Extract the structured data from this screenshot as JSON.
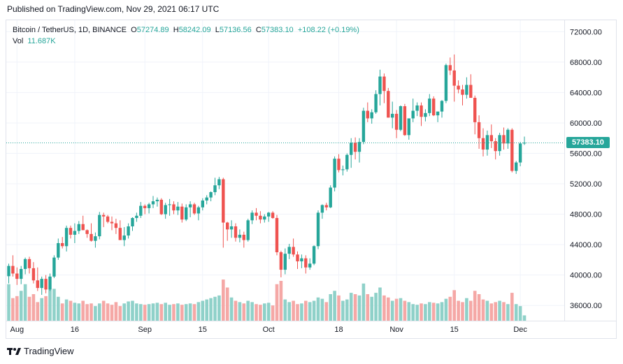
{
  "header": {
    "published": "Published on TradingView.com, Nov 29, 2021 06:17 UTC"
  },
  "legend": {
    "symbol": "Bitcoin / TetherUS, 1D, BINANCE",
    "o_label": "O",
    "o_value": "57274.89",
    "h_label": "H",
    "h_value": "58242.09",
    "l_label": "L",
    "l_value": "57136.56",
    "c_label": "C",
    "c_value": "57383.10",
    "change": "+108.22 (+0.19%)",
    "vol_label": "Vol",
    "vol_value": "11.687K"
  },
  "last_price_label": "57383.10",
  "footer": {
    "brand": "TradingView"
  },
  "colors": {
    "up": "#26a69a",
    "down": "#ef5350",
    "up_vol": "#8fd1c9",
    "down_vol": "#f5a8a6",
    "grid": "#f0f3fa",
    "last_line": "#26a69a"
  },
  "chart_data": {
    "type": "candlestick",
    "symbol": "BTCUSDT",
    "interval": "1D",
    "ylim": [
      34000,
      73500
    ],
    "y_ticks": [
      "72000.00",
      "68000.00",
      "64000.00",
      "60000.00",
      "56000.00",
      "52000.00",
      "48000.00",
      "44000.00",
      "40000.00",
      "36000.00"
    ],
    "y_tick_values": [
      72000,
      68000,
      64000,
      60000,
      56000,
      52000,
      48000,
      44000,
      40000,
      36000
    ],
    "x_ticks": [
      {
        "label": "Aug",
        "day": 2
      },
      {
        "label": "16",
        "day": 16
      },
      {
        "label": "Sep",
        "day": 33
      },
      {
        "label": "15",
        "day": 47
      },
      {
        "label": "Oct",
        "day": 63
      },
      {
        "label": "18",
        "day": 80
      },
      {
        "label": "Nov",
        "day": 94
      },
      {
        "label": "15",
        "day": 108
      },
      {
        "label": "Dec",
        "day": 124
      }
    ],
    "last_price": 57383.1,
    "candles": [
      [
        39850,
        41500,
        38900,
        41200,
        0.55
      ],
      [
        41200,
        42600,
        39800,
        40200,
        0.34
      ],
      [
        40200,
        41000,
        38700,
        39500,
        0.37
      ],
      [
        39500,
        41200,
        38800,
        40800,
        0.45
      ],
      [
        40800,
        42300,
        40100,
        42100,
        0.55
      ],
      [
        42100,
        42400,
        40200,
        40900,
        0.36
      ],
      [
        40900,
        41700,
        38900,
        39300,
        0.4
      ],
      [
        39300,
        41000,
        37900,
        38300,
        0.28
      ],
      [
        38300,
        39800,
        37400,
        39500,
        0.34
      ],
      [
        39500,
        40000,
        37600,
        38100,
        0.37
      ],
      [
        38100,
        40200,
        37900,
        39800,
        0.47
      ],
      [
        39800,
        42600,
        39600,
        42300,
        0.48
      ],
      [
        42300,
        44800,
        42000,
        44200,
        0.36
      ],
      [
        44200,
        45000,
        43500,
        43800,
        0.26
      ],
      [
        43800,
        46500,
        43100,
        46200,
        0.32
      ],
      [
        46200,
        46500,
        44800,
        45300,
        0.3
      ],
      [
        45300,
        46800,
        44200,
        45800,
        0.27
      ],
      [
        45800,
        47100,
        45400,
        46700,
        0.26
      ],
      [
        46700,
        47800,
        45900,
        45900,
        0.3
      ],
      [
        45900,
        46000,
        44900,
        45400,
        0.25
      ],
      [
        45400,
        46800,
        44400,
        44500,
        0.26
      ],
      [
        44500,
        45600,
        43600,
        45100,
        0.22
      ],
      [
        45100,
        48300,
        44700,
        47900,
        0.26
      ],
      [
        47900,
        48200,
        46300,
        47700,
        0.3
      ],
      [
        47700,
        47900,
        46800,
        47000,
        0.26
      ],
      [
        47000,
        47700,
        45900,
        46800,
        0.24
      ],
      [
        46800,
        47400,
        45400,
        46200,
        0.28
      ],
      [
        46200,
        47200,
        44600,
        44600,
        0.22
      ],
      [
        44600,
        46300,
        43800,
        45200,
        0.26
      ],
      [
        45200,
        46800,
        44800,
        46400,
        0.29
      ],
      [
        46400,
        47600,
        45800,
        47500,
        0.3
      ],
      [
        47500,
        48200,
        47000,
        47800,
        0.26
      ],
      [
        47800,
        49600,
        47500,
        49100,
        0.25
      ],
      [
        49100,
        49300,
        48000,
        48800,
        0.24
      ],
      [
        48800,
        49500,
        48100,
        49300,
        0.25
      ],
      [
        49300,
        50400,
        48800,
        49700,
        0.26
      ],
      [
        49700,
        50200,
        49000,
        49900,
        0.27
      ],
      [
        49900,
        50100,
        47900,
        48000,
        0.25
      ],
      [
        48000,
        49500,
        47400,
        49200,
        0.27
      ],
      [
        49200,
        50000,
        47800,
        49300,
        0.24
      ],
      [
        49300,
        49700,
        48000,
        48500,
        0.25
      ],
      [
        48500,
        49600,
        47900,
        49000,
        0.26
      ],
      [
        49000,
        49400,
        46900,
        47300,
        0.24
      ],
      [
        47300,
        49300,
        47100,
        48900,
        0.25
      ],
      [
        48900,
        49700,
        47600,
        49300,
        0.26
      ],
      [
        49300,
        49500,
        47900,
        48100,
        0.25
      ],
      [
        48100,
        49100,
        47200,
        48900,
        0.28
      ],
      [
        48900,
        50100,
        48500,
        49800,
        0.3
      ],
      [
        49800,
        50500,
        49300,
        50200,
        0.32
      ],
      [
        50200,
        51000,
        49700,
        50900,
        0.34
      ],
      [
        50900,
        52800,
        50500,
        51800,
        0.36
      ],
      [
        51800,
        52900,
        51300,
        52600,
        0.38
      ],
      [
        52600,
        52800,
        43600,
        46900,
        0.62
      ],
      [
        46900,
        47000,
        44500,
        46000,
        0.5
      ],
      [
        46000,
        47200,
        44900,
        46400,
        0.35
      ],
      [
        46400,
        46800,
        44400,
        44900,
        0.3
      ],
      [
        44900,
        46000,
        44300,
        45300,
        0.28
      ],
      [
        45300,
        45700,
        43600,
        44600,
        0.26
      ],
      [
        44600,
        47400,
        44400,
        47200,
        0.3
      ],
      [
        47200,
        48500,
        46700,
        48200,
        0.28
      ],
      [
        48200,
        48800,
        47200,
        47800,
        0.25
      ],
      [
        47800,
        48400,
        46800,
        47300,
        0.24
      ],
      [
        47300,
        48000,
        46900,
        47700,
        0.26
      ],
      [
        47700,
        48300,
        47000,
        48200,
        0.27
      ],
      [
        48200,
        48400,
        47400,
        47500,
        0.23
      ],
      [
        47500,
        47900,
        42600,
        43000,
        0.55
      ],
      [
        43000,
        43200,
        39700,
        40700,
        0.6
      ],
      [
        40700,
        43500,
        40100,
        42800,
        0.32
      ],
      [
        42800,
        44100,
        42100,
        43700,
        0.28
      ],
      [
        43700,
        44800,
        42400,
        42700,
        0.3
      ],
      [
        42700,
        43100,
        40800,
        41800,
        0.25
      ],
      [
        41800,
        42700,
        40900,
        42200,
        0.26
      ],
      [
        42200,
        42600,
        40200,
        41000,
        0.3
      ],
      [
        41000,
        42200,
        40700,
        41500,
        0.28
      ],
      [
        41500,
        43900,
        41300,
        43800,
        0.3
      ],
      [
        43800,
        48500,
        43400,
        48200,
        0.35
      ],
      [
        48200,
        49300,
        47400,
        49200,
        0.33
      ],
      [
        49200,
        49500,
        48500,
        48900,
        0.28
      ],
      [
        48900,
        51800,
        48800,
        51500,
        0.4
      ],
      [
        51500,
        55600,
        51000,
        55300,
        0.45
      ],
      [
        55300,
        55900,
        53500,
        53800,
        0.38
      ],
      [
        53800,
        54400,
        53100,
        53900,
        0.3
      ],
      [
        53900,
        56000,
        53600,
        55800,
        0.32
      ],
      [
        55800,
        58000,
        54100,
        57400,
        0.42
      ],
      [
        57400,
        58100,
        55200,
        56200,
        0.4
      ],
      [
        56200,
        58000,
        54800,
        57500,
        0.38
      ],
      [
        57500,
        62000,
        57200,
        61600,
        0.56
      ],
      [
        61600,
        62700,
        60100,
        60600,
        0.4
      ],
      [
        60600,
        61800,
        59900,
        61400,
        0.36
      ],
      [
        61400,
        64300,
        61200,
        63800,
        0.42
      ],
      [
        63800,
        67000,
        62300,
        66100,
        0.5
      ],
      [
        66100,
        66500,
        62600,
        64200,
        0.38
      ],
      [
        64200,
        64600,
        60700,
        60700,
        0.35
      ],
      [
        60700,
        62800,
        59300,
        61200,
        0.3
      ],
      [
        61200,
        61700,
        58000,
        59100,
        0.33
      ],
      [
        59100,
        62300,
        58900,
        62200,
        0.34
      ],
      [
        62200,
        62500,
        58300,
        58400,
        0.3
      ],
      [
        58400,
        60400,
        57800,
        60600,
        0.28
      ],
      [
        60600,
        63200,
        60100,
        61600,
        0.25
      ],
      [
        61600,
        62700,
        60900,
        62300,
        0.24
      ],
      [
        62300,
        62700,
        59600,
        60800,
        0.26
      ],
      [
        60800,
        61800,
        60200,
        61300,
        0.25
      ],
      [
        61300,
        63800,
        60900,
        63200,
        0.28
      ],
      [
        63200,
        63500,
        60900,
        61000,
        0.27
      ],
      [
        61000,
        61400,
        60100,
        61500,
        0.26
      ],
      [
        61500,
        63000,
        60700,
        62900,
        0.28
      ],
      [
        62900,
        67800,
        62600,
        67600,
        0.33
      ],
      [
        67600,
        68600,
        66300,
        66900,
        0.36
      ],
      [
        66900,
        69000,
        62800,
        64900,
        0.46
      ],
      [
        64900,
        65600,
        63900,
        64400,
        0.3
      ],
      [
        64400,
        65000,
        62300,
        63700,
        0.28
      ],
      [
        63700,
        66000,
        63200,
        65000,
        0.34
      ],
      [
        65000,
        66400,
        63500,
        63300,
        0.3
      ],
      [
        63300,
        63600,
        58500,
        60100,
        0.45
      ],
      [
        60100,
        61000,
        56600,
        58000,
        0.4
      ],
      [
        58000,
        59300,
        55600,
        56500,
        0.32
      ],
      [
        56500,
        59000,
        55700,
        58400,
        0.3
      ],
      [
        58400,
        59800,
        56700,
        57600,
        0.26
      ],
      [
        57600,
        58000,
        55200,
        56300,
        0.28
      ],
      [
        56300,
        58700,
        55700,
        58400,
        0.3
      ],
      [
        58400,
        59400,
        56500,
        57300,
        0.28
      ],
      [
        57300,
        59300,
        56600,
        59100,
        0.25
      ],
      [
        59100,
        59300,
        53500,
        53700,
        0.42
      ],
      [
        53700,
        55000,
        53300,
        54800,
        0.25
      ],
      [
        54800,
        57500,
        54300,
        57300,
        0.22
      ],
      [
        57300,
        58200,
        57100,
        57400,
        0.08
      ]
    ]
  }
}
